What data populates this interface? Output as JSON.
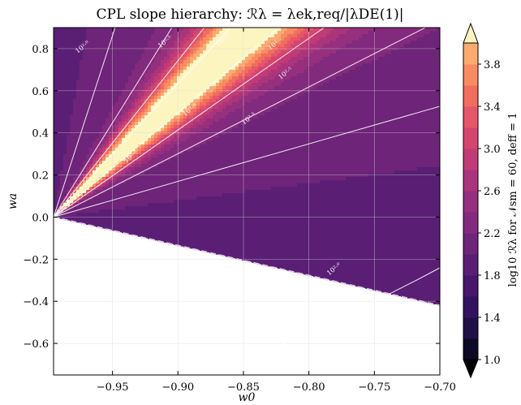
{
  "chart_data": {
    "type": "contour",
    "title": "CPL slope hierarchy: ℛλ = λek,req/|λDE(1)|",
    "xlabel": "w0",
    "ylabel": "wa",
    "xlim": [
      -0.995,
      -0.7
    ],
    "ylim": [
      -0.75,
      0.9
    ],
    "x_ticks": [
      -0.95,
      -0.9,
      -0.85,
      -0.8,
      -0.75,
      -0.7
    ],
    "x_tick_labels": [
      "−0.95",
      "−0.90",
      "−0.85",
      "−0.80",
      "−0.75",
      "−0.70"
    ],
    "y_ticks": [
      -0.6,
      -0.4,
      -0.2,
      0.0,
      0.2,
      0.4,
      0.6,
      0.8
    ],
    "y_tick_labels": [
      "−0.6",
      "−0.4",
      "−0.2",
      "0.0",
      "0.2",
      "0.4",
      "0.6",
      "0.8"
    ],
    "grid": true,
    "colormap": "magma",
    "domain_boundary": {
      "description": "white dashed",
      "points": [
        [
          -0.995,
          0.0
        ],
        [
          -0.7,
          -0.42
        ]
      ]
    },
    "colorbar": {
      "label": "log10 ℛλ for 𝒩sm = 60, deff = 1",
      "min": 1.0,
      "max": 4.0,
      "extend": "both",
      "levels": [
        1.0,
        1.2,
        1.4,
        1.6,
        1.8,
        2.0,
        2.2,
        2.4,
        2.6,
        2.8,
        3.0,
        3.2,
        3.4,
        3.6,
        3.8,
        4.0
      ],
      "tick_values": [
        1.0,
        1.4,
        1.8,
        2.2,
        2.6,
        3.0,
        3.4,
        3.8
      ],
      "tick_labels": [
        "1.0",
        "1.4",
        "1.8",
        "2.2",
        "2.6",
        "3.0",
        "3.4",
        "3.8"
      ],
      "band_colors": [
        "#0b0924",
        "#1f1047",
        "#33135e",
        "#46176b",
        "#5a1f75",
        "#6e2479",
        "#822a7d",
        "#952f7e",
        "#ab357b",
        "#c13b76",
        "#d5466f",
        "#e5566a",
        "#f16d5d",
        "#f98b62",
        "#fdaa71"
      ],
      "extend_low_color": "#000004",
      "extend_high_color": "#fcf5c0"
    },
    "contour_labels": [
      {
        "text": "10²·⁰",
        "w0": -0.972,
        "wa": 0.8
      },
      {
        "text": "10²·⁵",
        "w0": -0.909,
        "wa": 0.825
      },
      {
        "text": "10³·⁰",
        "w0": -0.865,
        "wa": 0.835
      },
      {
        "text": "10³·⁵",
        "w0": -0.825,
        "wa": 0.815
      },
      {
        "text": "10²·⁵",
        "w0": -0.817,
        "wa": 0.675
      },
      {
        "text": "10³·⁰",
        "w0": -0.89,
        "wa": 0.5
      },
      {
        "text": "10²·⁵",
        "w0": -0.845,
        "wa": 0.46
      },
      {
        "text": "10²·⁰",
        "w0": -0.935,
        "wa": 0.28
      },
      {
        "text": "10²·⁰",
        "w0": -0.78,
        "wa": -0.255
      }
    ]
  }
}
